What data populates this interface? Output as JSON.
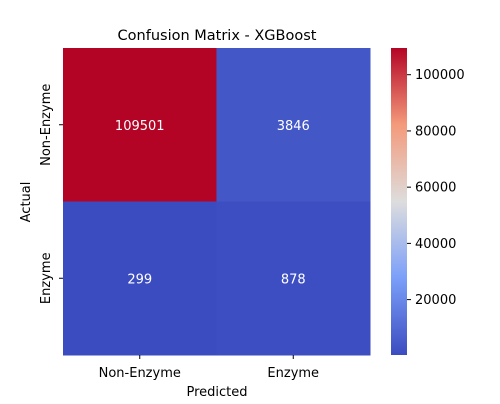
{
  "chart_data": {
    "type": "heatmap",
    "title": "Confusion Matrix - XGBoost",
    "xlabel": "Predicted",
    "ylabel": "Actual",
    "x_categories": [
      "Non-Enzyme",
      "Enzyme"
    ],
    "y_categories": [
      "Non-Enzyme",
      "Enzyme"
    ],
    "values": [
      [
        109501,
        3846
      ],
      [
        299,
        878
      ]
    ],
    "colormap": "coolwarm",
    "colorbar": {
      "range": [
        299,
        109501
      ],
      "ticks": [
        20000,
        40000,
        60000,
        80000,
        100000
      ],
      "tick_labels": [
        "20000",
        "40000",
        "60000",
        "80000",
        "100000"
      ]
    },
    "grid": false,
    "legend": "colorbar-right"
  }
}
